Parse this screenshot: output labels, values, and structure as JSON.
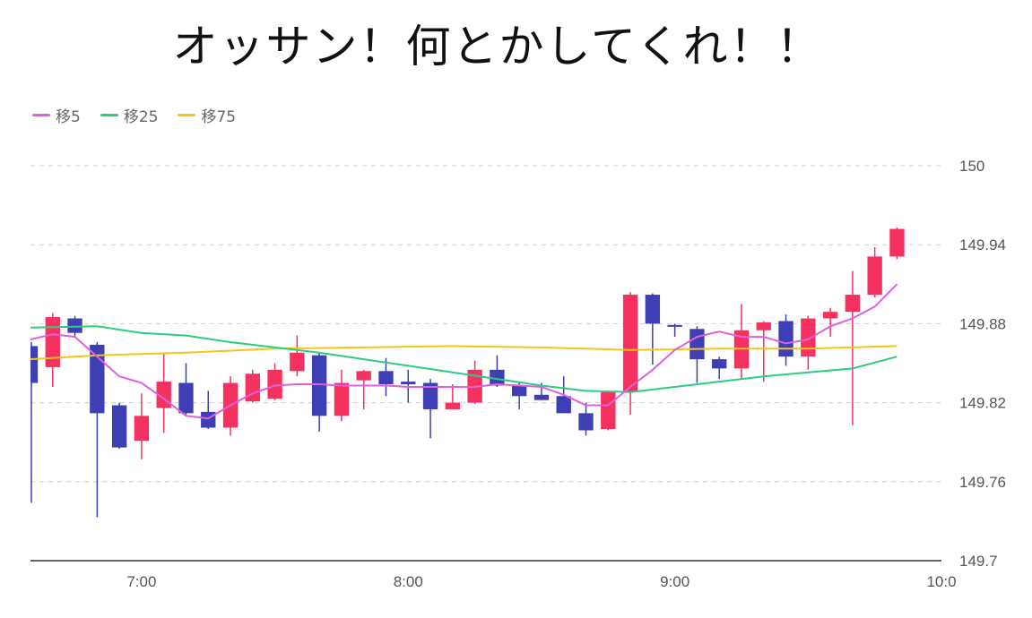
{
  "title": "オッサン！何とかしてくれ！！",
  "colors": {
    "up": "#f5325f",
    "down": "#3f3fb5",
    "grid": "#cfcfcf",
    "axis": "#333333"
  },
  "chart_data": {
    "type": "candlestick",
    "legend_position": "top-left",
    "grid": true,
    "y_axis_position": "right",
    "ylim": [
      149.7,
      150.0
    ],
    "yticks": [
      "150",
      "149.94",
      "149.88",
      "149.82",
      "149.76",
      "149.7"
    ],
    "xticks": [
      "7:00",
      "8:00",
      "9:00",
      "10:0"
    ],
    "x_minutes_range": [
      395,
      600
    ],
    "x_ticks_minutes": [
      420,
      480,
      540,
      600
    ],
    "series": [
      {
        "name": "移5",
        "color": "#e060e0"
      },
      {
        "name": "移25",
        "color": "#2ecc80"
      },
      {
        "name": "移75",
        "color": "#f5c518"
      }
    ],
    "candles": [
      {
        "t": 395,
        "o": 149.863,
        "h": 149.866,
        "l": 149.744,
        "c": 149.835
      },
      {
        "t": 400,
        "o": 149.847,
        "h": 149.888,
        "l": 149.832,
        "c": 149.885
      },
      {
        "t": 405,
        "o": 149.884,
        "h": 149.886,
        "l": 149.87,
        "c": 149.873
      },
      {
        "t": 410,
        "o": 149.864,
        "h": 149.866,
        "l": 149.733,
        "c": 149.812
      },
      {
        "t": 415,
        "o": 149.818,
        "h": 149.82,
        "l": 149.785,
        "c": 149.786
      },
      {
        "t": 420,
        "o": 149.791,
        "h": 149.827,
        "l": 149.777,
        "c": 149.81
      },
      {
        "t": 425,
        "o": 149.816,
        "h": 149.857,
        "l": 149.797,
        "c": 149.836
      },
      {
        "t": 430,
        "o": 149.835,
        "h": 149.85,
        "l": 149.81,
        "c": 149.812
      },
      {
        "t": 435,
        "o": 149.813,
        "h": 149.829,
        "l": 149.8,
        "c": 149.801
      },
      {
        "t": 440,
        "o": 149.801,
        "h": 149.84,
        "l": 149.795,
        "c": 149.835
      },
      {
        "t": 445,
        "o": 149.821,
        "h": 149.845,
        "l": 149.82,
        "c": 149.842
      },
      {
        "t": 450,
        "o": 149.823,
        "h": 149.85,
        "l": 149.822,
        "c": 149.845
      },
      {
        "t": 455,
        "o": 149.844,
        "h": 149.871,
        "l": 149.84,
        "c": 149.858
      },
      {
        "t": 460,
        "o": 149.856,
        "h": 149.858,
        "l": 149.798,
        "c": 149.81
      },
      {
        "t": 465,
        "o": 149.81,
        "h": 149.845,
        "l": 149.806,
        "c": 149.835
      },
      {
        "t": 470,
        "o": 149.837,
        "h": 149.845,
        "l": 149.815,
        "c": 149.844
      },
      {
        "t": 475,
        "o": 149.844,
        "h": 149.854,
        "l": 149.825,
        "c": 149.834
      },
      {
        "t": 480,
        "o": 149.836,
        "h": 149.845,
        "l": 149.82,
        "c": 149.834
      },
      {
        "t": 485,
        "o": 149.835,
        "h": 149.838,
        "l": 149.793,
        "c": 149.815
      },
      {
        "t": 490,
        "o": 149.815,
        "h": 149.834,
        "l": 149.815,
        "c": 149.82
      },
      {
        "t": 495,
        "o": 149.82,
        "h": 149.852,
        "l": 149.819,
        "c": 149.845
      },
      {
        "t": 500,
        "o": 149.845,
        "h": 149.856,
        "l": 149.832,
        "c": 149.833
      },
      {
        "t": 505,
        "o": 149.833,
        "h": 149.835,
        "l": 149.815,
        "c": 149.825
      },
      {
        "t": 510,
        "o": 149.826,
        "h": 149.835,
        "l": 149.822,
        "c": 149.822
      },
      {
        "t": 515,
        "o": 149.825,
        "h": 149.84,
        "l": 149.812,
        "c": 149.812
      },
      {
        "t": 520,
        "o": 149.812,
        "h": 149.82,
        "l": 149.795,
        "c": 149.799
      },
      {
        "t": 525,
        "o": 149.8,
        "h": 149.829,
        "l": 149.799,
        "c": 149.828
      },
      {
        "t": 530,
        "o": 149.828,
        "h": 149.904,
        "l": 149.811,
        "c": 149.902
      },
      {
        "t": 535,
        "o": 149.902,
        "h": 149.903,
        "l": 149.849,
        "c": 149.88
      },
      {
        "t": 540,
        "o": 149.879,
        "h": 149.88,
        "l": 149.87,
        "c": 149.878
      },
      {
        "t": 545,
        "o": 149.876,
        "h": 149.878,
        "l": 149.835,
        "c": 149.853
      },
      {
        "t": 550,
        "o": 149.853,
        "h": 149.855,
        "l": 149.838,
        "c": 149.846
      },
      {
        "t": 555,
        "o": 149.846,
        "h": 149.895,
        "l": 149.838,
        "c": 149.875
      },
      {
        "t": 560,
        "o": 149.875,
        "h": 149.882,
        "l": 149.836,
        "c": 149.881
      },
      {
        "t": 565,
        "o": 149.882,
        "h": 149.887,
        "l": 149.848,
        "c": 149.855
      },
      {
        "t": 570,
        "o": 149.855,
        "h": 149.886,
        "l": 149.845,
        "c": 149.884
      },
      {
        "t": 575,
        "o": 149.884,
        "h": 149.892,
        "l": 149.87,
        "c": 149.889
      },
      {
        "t": 580,
        "o": 149.889,
        "h": 149.92,
        "l": 149.803,
        "c": 149.902
      },
      {
        "t": 585,
        "o": 149.902,
        "h": 149.938,
        "l": 149.9,
        "c": 149.931
      },
      {
        "t": 590,
        "o": 149.931,
        "h": 149.953,
        "l": 149.929,
        "c": 149.952
      }
    ],
    "ma5": [
      [
        395,
        149.868
      ],
      [
        400,
        149.872
      ],
      [
        405,
        149.87
      ],
      [
        410,
        149.855
      ],
      [
        415,
        149.84
      ],
      [
        420,
        149.835
      ],
      [
        425,
        149.823
      ],
      [
        430,
        149.81
      ],
      [
        435,
        149.808
      ],
      [
        440,
        149.818
      ],
      [
        445,
        149.827
      ],
      [
        450,
        149.833
      ],
      [
        455,
        149.834
      ],
      [
        460,
        149.834
      ],
      [
        465,
        149.833
      ],
      [
        470,
        149.833
      ],
      [
        475,
        149.833
      ],
      [
        480,
        149.832
      ],
      [
        485,
        149.832
      ],
      [
        490,
        149.832
      ],
      [
        495,
        149.832
      ],
      [
        500,
        149.834
      ],
      [
        505,
        149.833
      ],
      [
        510,
        149.832
      ],
      [
        515,
        149.826
      ],
      [
        520,
        149.818
      ],
      [
        525,
        149.818
      ],
      [
        530,
        149.832
      ],
      [
        535,
        149.845
      ],
      [
        540,
        149.86
      ],
      [
        545,
        149.87
      ],
      [
        550,
        149.874
      ],
      [
        555,
        149.87
      ],
      [
        560,
        149.87
      ],
      [
        565,
        149.865
      ],
      [
        570,
        149.868
      ],
      [
        575,
        149.878
      ],
      [
        580,
        149.884
      ],
      [
        585,
        149.893
      ],
      [
        590,
        149.91
      ]
    ],
    "ma25": [
      [
        395,
        149.877
      ],
      [
        410,
        149.878
      ],
      [
        420,
        149.873
      ],
      [
        430,
        149.871
      ],
      [
        440,
        149.866
      ],
      [
        450,
        149.862
      ],
      [
        460,
        149.858
      ],
      [
        470,
        149.853
      ],
      [
        480,
        149.848
      ],
      [
        490,
        149.843
      ],
      [
        500,
        149.838
      ],
      [
        510,
        149.833
      ],
      [
        520,
        149.829
      ],
      [
        530,
        149.828
      ],
      [
        540,
        149.832
      ],
      [
        550,
        149.836
      ],
      [
        560,
        149.84
      ],
      [
        570,
        149.843
      ],
      [
        580,
        149.846
      ],
      [
        590,
        149.855
      ]
    ],
    "ma75": [
      [
        395,
        149.853
      ],
      [
        410,
        149.856
      ],
      [
        430,
        149.858
      ],
      [
        450,
        149.861
      ],
      [
        470,
        149.862
      ],
      [
        490,
        149.863
      ],
      [
        510,
        149.862
      ],
      [
        530,
        149.86
      ],
      [
        550,
        149.861
      ],
      [
        570,
        149.861
      ],
      [
        590,
        149.863
      ]
    ]
  }
}
